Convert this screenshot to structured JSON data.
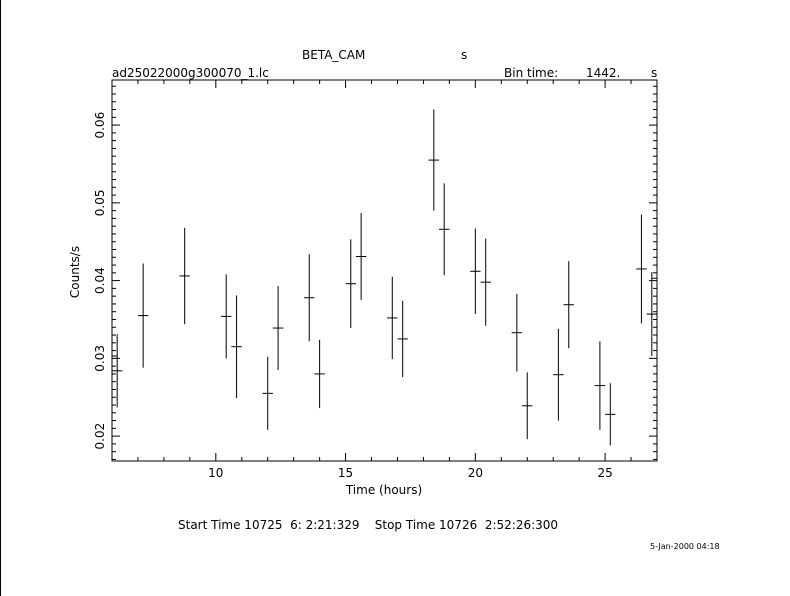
{
  "header": {
    "instrument": "BETA_CAM",
    "units_letter": "s",
    "filename": "ad25022000g300070_1.lc",
    "bin_time_label": "Bin time:",
    "bin_time_value": "1442.",
    "bin_time_unit": "s"
  },
  "footer": {
    "time_range": "Start Time 10725  6: 2:21:329    Stop Time 10726  2:52:26:300",
    "date_stamp": "5-Jan-2000 04:18"
  },
  "chart_data": {
    "type": "scatter",
    "xlabel": "Time (hours)",
    "ylabel": "Counts/s",
    "xlim": [
      6.0,
      27.0
    ],
    "ylim": [
      0.0168,
      0.0658
    ],
    "xticks": [
      10,
      15,
      20,
      25
    ],
    "yticks": [
      0.02,
      0.03,
      0.04,
      0.05,
      0.06
    ],
    "ytick_labels": [
      "0.02",
      "0.03",
      "0.04",
      "0.05",
      "0.06"
    ],
    "x_halfwidth": 0.2,
    "points": [
      {
        "x": 6.0,
        "y": 0.0303,
        "err": 0.0028
      },
      {
        "x": 6.2,
        "y": 0.0284,
        "err": 0.0047
      },
      {
        "x": 7.2,
        "y": 0.0355,
        "err": 0.0067
      },
      {
        "x": 8.8,
        "y": 0.0406,
        "err": 0.0062
      },
      {
        "x": 10.4,
        "y": 0.0354,
        "err": 0.0054
      },
      {
        "x": 10.8,
        "y": 0.0315,
        "err": 0.0066
      },
      {
        "x": 12.0,
        "y": 0.0255,
        "err": 0.0047
      },
      {
        "x": 12.4,
        "y": 0.0339,
        "err": 0.0054
      },
      {
        "x": 13.6,
        "y": 0.0378,
        "err": 0.0056
      },
      {
        "x": 14.0,
        "y": 0.028,
        "err": 0.0044
      },
      {
        "x": 15.2,
        "y": 0.0396,
        "err": 0.0057
      },
      {
        "x": 15.6,
        "y": 0.0431,
        "err": 0.0056
      },
      {
        "x": 16.8,
        "y": 0.0352,
        "err": 0.0053
      },
      {
        "x": 17.2,
        "y": 0.0325,
        "err": 0.0049
      },
      {
        "x": 18.4,
        "y": 0.0555,
        "err": 0.0065
      },
      {
        "x": 18.8,
        "y": 0.0466,
        "err": 0.0059
      },
      {
        "x": 20.0,
        "y": 0.0412,
        "err": 0.0055
      },
      {
        "x": 20.4,
        "y": 0.0398,
        "err": 0.0056
      },
      {
        "x": 21.6,
        "y": 0.0333,
        "err": 0.005
      },
      {
        "x": 22.0,
        "y": 0.0239,
        "err": 0.0043
      },
      {
        "x": 23.2,
        "y": 0.0279,
        "err": 0.0059
      },
      {
        "x": 23.6,
        "y": 0.0369,
        "err": 0.0056
      },
      {
        "x": 24.8,
        "y": 0.0265,
        "err": 0.0057
      },
      {
        "x": 25.2,
        "y": 0.0228,
        "err": 0.004
      },
      {
        "x": 26.4,
        "y": 0.0415,
        "err": 0.007
      },
      {
        "x": 26.8,
        "y": 0.0357,
        "err": 0.0054
      },
      {
        "x": 27.0,
        "y": 0.0403,
        "err": 0.0022
      }
    ]
  }
}
